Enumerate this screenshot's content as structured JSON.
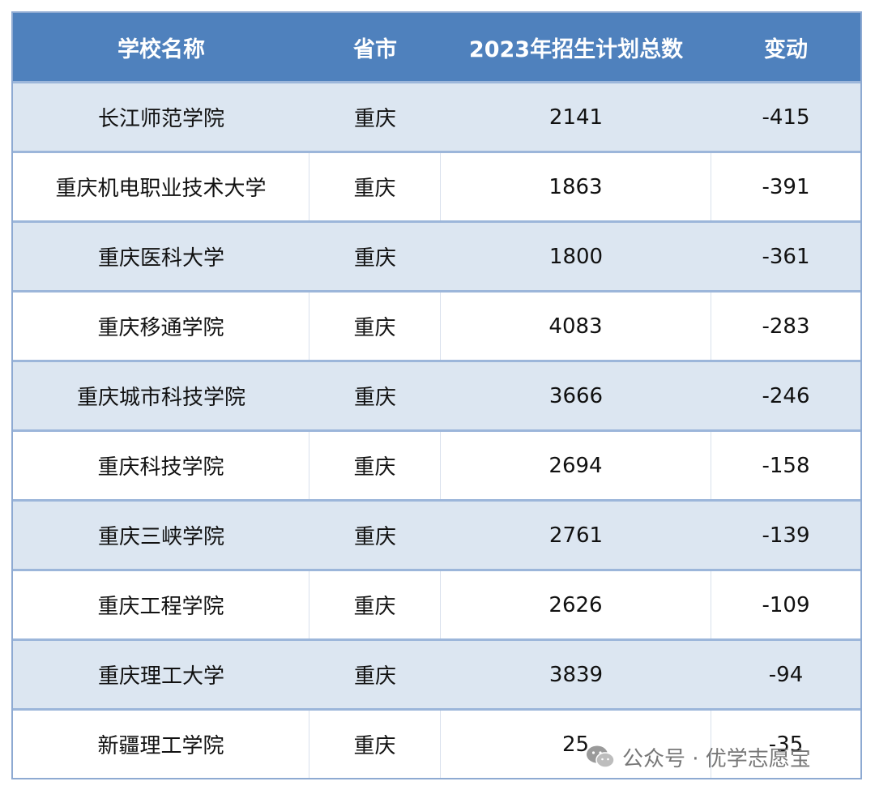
{
  "table": {
    "headers": [
      "学校名称",
      "省市",
      "2023年招生计划总数",
      "变动"
    ],
    "rows": [
      [
        "长江师范学院",
        "重庆",
        "2141",
        "-415"
      ],
      [
        "重庆机电职业技术大学",
        "重庆",
        "1863",
        "-391"
      ],
      [
        "重庆医科大学",
        "重庆",
        "1800",
        "-361"
      ],
      [
        "重庆移通学院",
        "重庆",
        "4083",
        "-283"
      ],
      [
        "重庆城市科技学院",
        "重庆",
        "3666",
        "-246"
      ],
      [
        "重庆科技学院",
        "重庆",
        "2694",
        "-158"
      ],
      [
        "重庆三峡学院",
        "重庆",
        "2761",
        "-139"
      ],
      [
        "重庆工程学院",
        "重庆",
        "2626",
        "-109"
      ],
      [
        "重庆理工大学",
        "重庆",
        "3839",
        "-94"
      ],
      [
        "新疆理工学院",
        "重庆",
        "25",
        "-35"
      ]
    ]
  },
  "watermark": {
    "text": "公众号 · 优学志愿宝",
    "icon": "wechat-icon"
  },
  "colors": {
    "header_bg": "#4f81bd",
    "odd_row_bg": "#dce6f1",
    "border": "#8eaad2"
  }
}
